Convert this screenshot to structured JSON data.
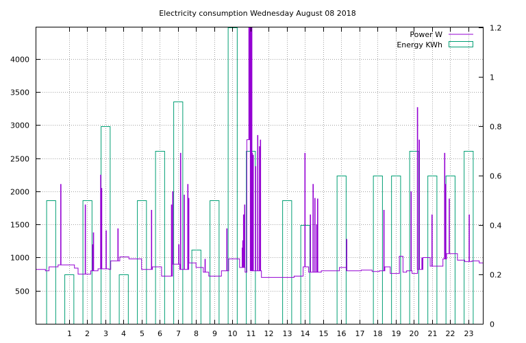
{
  "chart_data": {
    "type": "line",
    "title": "Electricity consumption Wednesday August 08 2018",
    "xlabel": "",
    "ylabel": "",
    "xlim": [
      -0.8,
      23.8
    ],
    "ylim": [
      0,
      4475
    ],
    "y2lim": [
      0,
      1.2
    ],
    "grid": true,
    "legend_placement": "top-right",
    "x_ticks": [
      1,
      2,
      3,
      4,
      5,
      6,
      7,
      8,
      9,
      10,
      11,
      12,
      13,
      14,
      15,
      16,
      17,
      18,
      19,
      20,
      21,
      22,
      23
    ],
    "y_ticks": [
      500,
      1000,
      1500,
      2000,
      2500,
      3000,
      3500,
      4000
    ],
    "y2_ticks": [
      0,
      0.2,
      0.4,
      0.6,
      0.8,
      1,
      1.2
    ],
    "colors": {
      "power": "#9400d3",
      "energy": "#009e73"
    },
    "series": [
      {
        "name": "Power W",
        "axis": "y1",
        "style": "steps",
        "x": [
          -0.8,
          -0.3,
          -0.3,
          -0.1,
          -0.1,
          0.4,
          0.4,
          1.3,
          1.3,
          1.5,
          1.5,
          2.2,
          2.2,
          2.6,
          2.6,
          3.2,
          3.2,
          3.3,
          3.3,
          3.8,
          3.8,
          4.3,
          4.3,
          5.0,
          5.0,
          5.6,
          5.6,
          6.1,
          6.1,
          6.7,
          6.7,
          7.1,
          7.1,
          7.6,
          7.6,
          8.0,
          8.0,
          8.4,
          8.4,
          8.7,
          8.7,
          9.4,
          9.4,
          9.8,
          9.8,
          10.4,
          10.4,
          10.7,
          10.7,
          10.8,
          10.8,
          11.0,
          11.0,
          11.6,
          11.6,
          13.4,
          13.4,
          13.9,
          13.9,
          14.2,
          14.2,
          14.9,
          14.9,
          15.9,
          15.9,
          16.3,
          16.3,
          17.1,
          17.1,
          17.7,
          17.7,
          18.1,
          18.1,
          18.4,
          18.4,
          18.7,
          18.7,
          19.2,
          19.2,
          19.4,
          19.4,
          19.6,
          19.6,
          19.9,
          19.9,
          20.2,
          20.2,
          20.5,
          20.5,
          20.9,
          20.9,
          21.6,
          21.6,
          21.8,
          21.8,
          22.4,
          22.4,
          22.8,
          22.8,
          23.2,
          23.2,
          23.6,
          23.6,
          23.8
        ],
        "y": [
          820,
          820,
          800,
          800,
          860,
          860,
          890,
          890,
          840,
          840,
          750,
          750,
          800,
          800,
          830,
          830,
          820,
          820,
          950,
          950,
          1010,
          1010,
          980,
          980,
          820,
          820,
          860,
          860,
          720,
          720,
          900,
          900,
          820,
          820,
          920,
          920,
          850,
          850,
          780,
          780,
          720,
          720,
          800,
          800,
          980,
          980,
          850,
          850,
          780,
          780,
          2780,
          2780,
          800,
          800,
          700,
          700,
          720,
          720,
          860,
          860,
          780,
          780,
          800,
          800,
          850,
          850,
          800,
          800,
          810,
          810,
          790,
          790,
          800,
          800,
          860,
          860,
          760,
          760,
          1020,
          1020,
          780,
          780,
          800,
          800,
          760,
          760,
          820,
          820,
          1000,
          1000,
          870,
          870,
          980,
          980,
          1060,
          1060,
          960,
          960,
          940,
          940,
          950,
          950,
          920,
          920
        ],
        "spikes": [
          [
            0.55,
            2110
          ],
          [
            1.9,
            1800
          ],
          [
            2.3,
            1200
          ],
          [
            2.35,
            1380
          ],
          [
            2.75,
            2250
          ],
          [
            2.8,
            2050
          ],
          [
            3.05,
            1410
          ],
          [
            3.7,
            1440
          ],
          [
            5.55,
            1720
          ],
          [
            6.65,
            1800
          ],
          [
            6.72,
            2000
          ],
          [
            7.05,
            1200
          ],
          [
            7.15,
            2580
          ],
          [
            7.35,
            1950
          ],
          [
            7.55,
            2110
          ],
          [
            7.6,
            1900
          ],
          [
            8.5,
            980
          ],
          [
            9.7,
            1440
          ],
          [
            10.55,
            1150
          ],
          [
            10.58,
            1260
          ],
          [
            10.62,
            1650
          ],
          [
            10.68,
            1800
          ],
          [
            10.92,
            4475
          ],
          [
            10.95,
            4475
          ],
          [
            11.0,
            4475
          ],
          [
            11.03,
            4475
          ],
          [
            11.07,
            4475
          ],
          [
            11.1,
            2580
          ],
          [
            11.15,
            2550
          ],
          [
            11.28,
            2380
          ],
          [
            11.4,
            2850
          ],
          [
            11.5,
            2680
          ],
          [
            11.55,
            2780
          ],
          [
            14.0,
            2580
          ],
          [
            14.3,
            1650
          ],
          [
            14.45,
            2110
          ],
          [
            14.55,
            1900
          ],
          [
            14.65,
            1500
          ],
          [
            14.7,
            1890
          ],
          [
            16.3,
            1280
          ],
          [
            18.35,
            1720
          ],
          [
            19.85,
            2000
          ],
          [
            20.2,
            3270
          ],
          [
            20.3,
            2780
          ],
          [
            20.45,
            1000
          ],
          [
            21.0,
            1650
          ],
          [
            21.7,
            2580
          ],
          [
            21.75,
            2110
          ],
          [
            21.95,
            1890
          ],
          [
            23.05,
            1650
          ]
        ]
      },
      {
        "name": "Energy KWh",
        "axis": "y2",
        "style": "histogram-boxes",
        "x": [
          0,
          1,
          2,
          3,
          4,
          5,
          6,
          7,
          8,
          9,
          10,
          11,
          12,
          13,
          14,
          15,
          16,
          17,
          18,
          19,
          20,
          21,
          22,
          23
        ],
        "values": [
          0.5,
          0.2,
          0.5,
          0.8,
          0.2,
          0.5,
          0.7,
          0.9,
          0.3,
          0.5,
          1.2,
          0.7,
          0,
          0.5,
          0.4,
          0,
          0.6,
          0,
          0.6,
          0.6,
          0.7,
          0.6,
          0.6,
          0.7
        ]
      }
    ]
  }
}
